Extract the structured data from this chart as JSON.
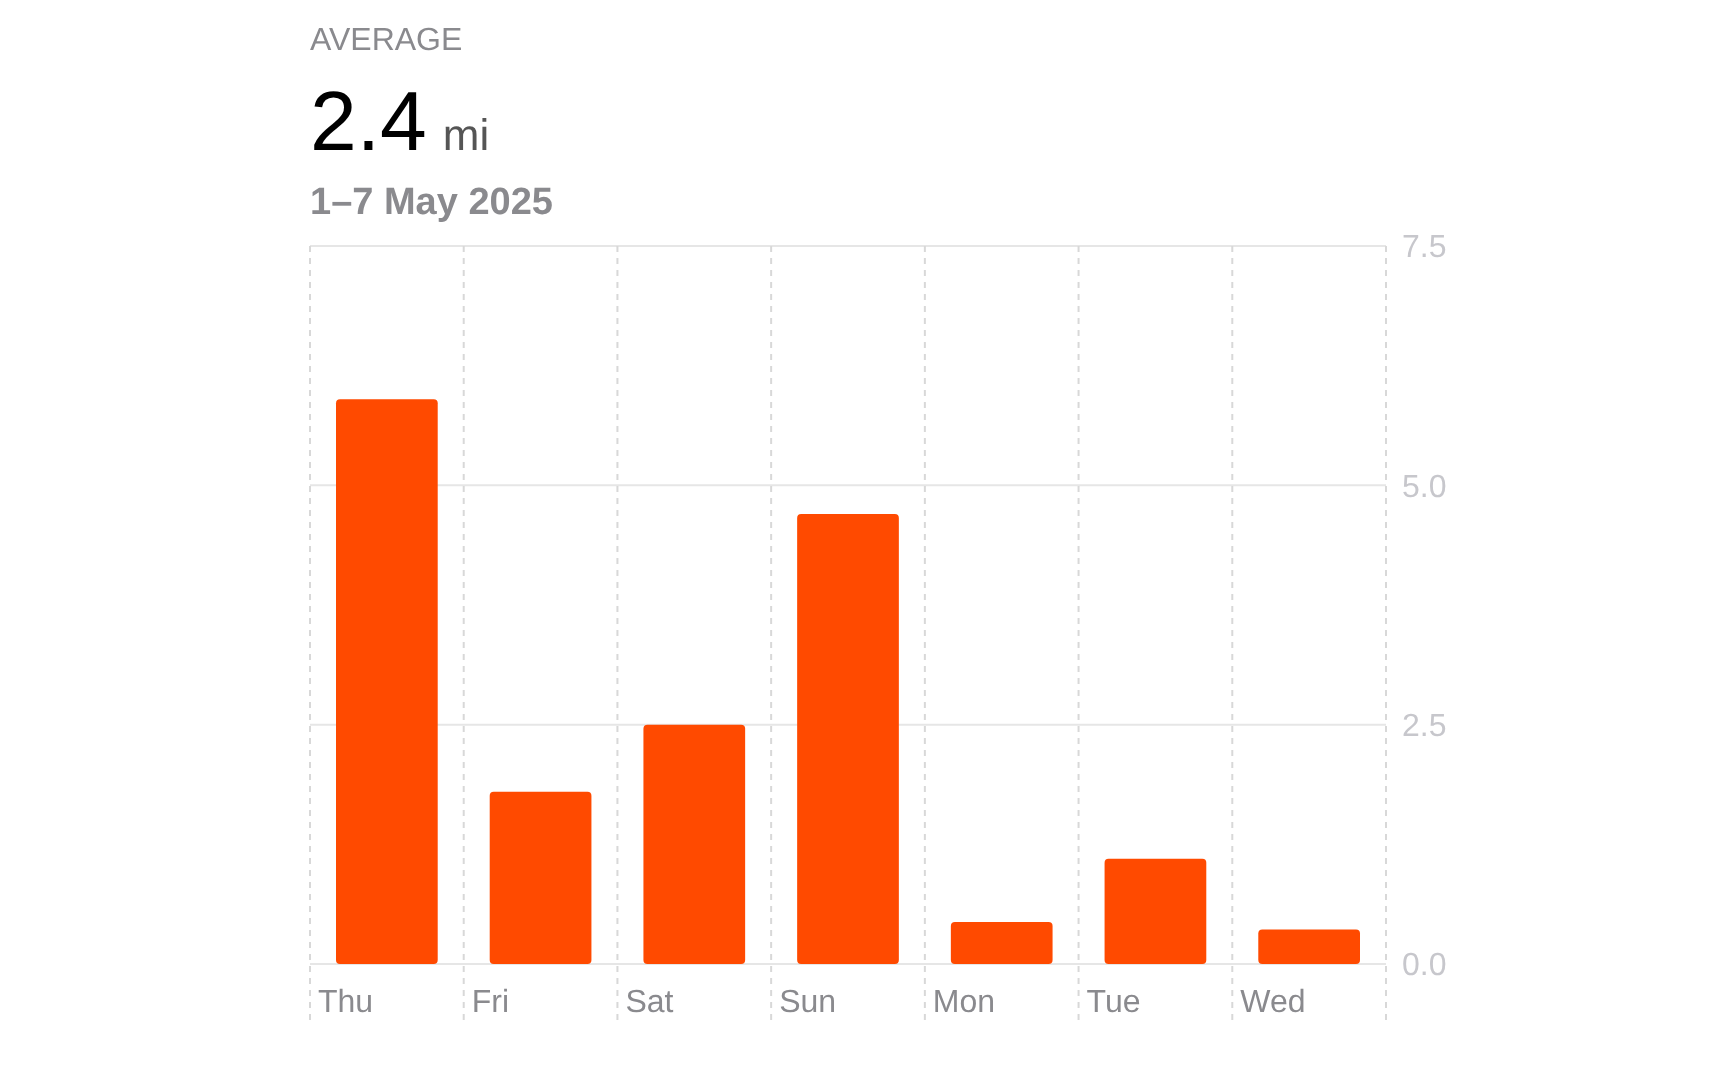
{
  "chart_data": {
    "type": "bar",
    "title": "AVERAGE",
    "subtitle": "1–7 May 2025",
    "annotations": [
      "2.4 mi"
    ],
    "categories": [
      "Thu",
      "Fri",
      "Sat",
      "Sun",
      "Mon",
      "Tue",
      "Wed"
    ],
    "values": [
      5.9,
      1.8,
      2.5,
      4.7,
      0.44,
      1.1,
      0.36
    ],
    "color": "#ff4a00",
    "ylim": [
      0,
      7.5
    ],
    "yticks": [
      {
        "value": 0,
        "label": "0.0"
      },
      {
        "value": 2.5,
        "label": "2.5"
      },
      {
        "value": 5,
        "label": "5.0"
      },
      {
        "value": 7.5,
        "label": "7.5"
      }
    ],
    "grid": true
  }
}
